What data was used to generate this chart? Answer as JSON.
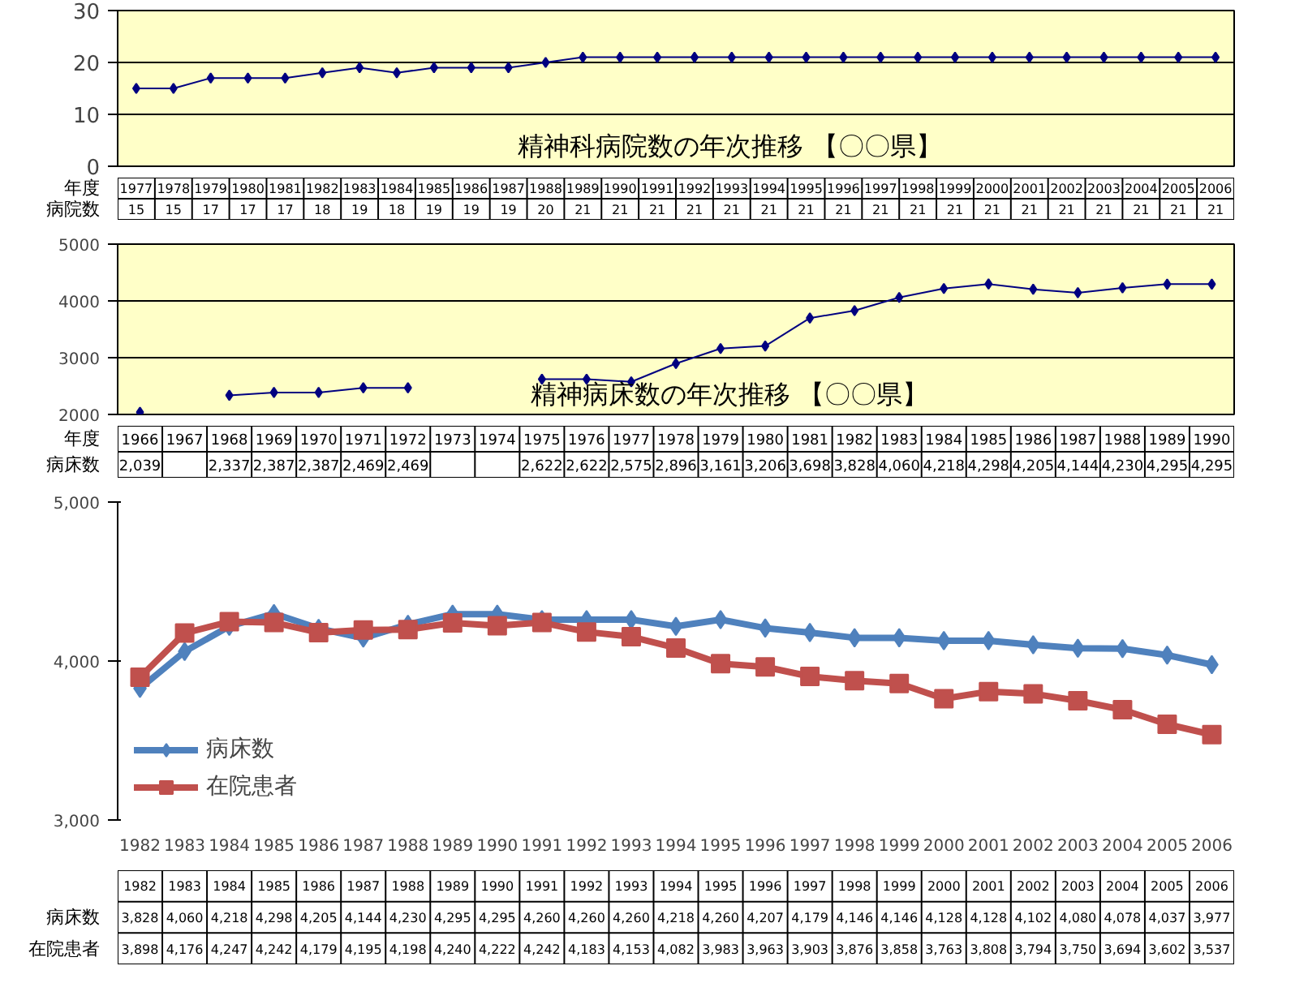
{
  "chart_data": [
    {
      "type": "line",
      "title": "精神科病院数の年次推移 【〇〇県】",
      "xlabel": "年度",
      "categories": [
        "1977",
        "1978",
        "1979",
        "1980",
        "1981",
        "1982",
        "1983",
        "1984",
        "1985",
        "1986",
        "1987",
        "1988",
        "1989",
        "1990",
        "1991",
        "1992",
        "1993",
        "1994",
        "1995",
        "1996",
        "1997",
        "1998",
        "1999",
        "2000",
        "2001",
        "2002",
        "2003",
        "2004",
        "2005",
        "2006"
      ],
      "series": [
        {
          "name": "病院数",
          "color": "#000080",
          "values": [
            15,
            15,
            17,
            17,
            17,
            18,
            19,
            18,
            19,
            19,
            19,
            20,
            21,
            21,
            21,
            21,
            21,
            21,
            21,
            21,
            21,
            21,
            21,
            21,
            21,
            21,
            21,
            21,
            21,
            21
          ]
        }
      ],
      "ylim": [
        0,
        30
      ],
      "yticks": [
        0,
        10,
        20,
        30
      ],
      "grid": "y",
      "tick_labels": "y",
      "marker": "diamond",
      "data_labels": true
    },
    {
      "type": "line",
      "title": "精神病床数の年次推移 【〇〇県】",
      "xlabel": "年度",
      "categories": [
        "1966",
        "1967",
        "1968",
        "1969",
        "1970",
        "1971",
        "1972",
        "1973",
        "1974",
        "1975",
        "1976",
        "1977",
        "1978",
        "1979",
        "1980",
        "1981",
        "1982",
        "1983",
        "1984",
        "1985",
        "1986",
        "1987",
        "1988",
        "1989",
        "1990"
      ],
      "series": [
        {
          "name": "病床数",
          "color": "#000080",
          "values": [
            2039,
            null,
            2337,
            2387,
            2387,
            2469,
            2469,
            null,
            null,
            2622,
            2622,
            2575,
            2896,
            3161,
            3206,
            3698,
            3828,
            4060,
            4218,
            4298,
            4205,
            4144,
            4230,
            4295,
            4295
          ],
          "value_labels": [
            "2,039",
            null,
            "2,337",
            "2,387",
            "2,387",
            "2,469",
            "2,469",
            null,
            null,
            "2,622",
            "2,622",
            "2,575",
            "2,896",
            "3,161",
            "3,206",
            "3,698",
            "3,828",
            "4,060",
            "4,218",
            "4,298",
            "4,205",
            "4,144",
            "4,230",
            "4,295",
            "4,295"
          ]
        }
      ],
      "ylim": [
        2000,
        5000
      ],
      "yticks": [
        2000,
        3000,
        4000,
        5000
      ],
      "grid": "y",
      "tick_labels": "y",
      "marker": "diamond"
    },
    {
      "type": "line",
      "categories": [
        "1982",
        "1983",
        "1984",
        "1985",
        "1986",
        "1987",
        "1988",
        "1989",
        "1990",
        "1991",
        "1992",
        "1993",
        "1994",
        "1995",
        "1996",
        "1997",
        "1998",
        "1999",
        "2000",
        "2001",
        "2002",
        "2003",
        "2004",
        "2005",
        "2006"
      ],
      "series": [
        {
          "name": "病床数",
          "color": "#4f81bd",
          "marker": "diamond",
          "values": [
            3828,
            4060,
            4218,
            4298,
            4205,
            4144,
            4230,
            4295,
            4295,
            4260,
            4260,
            4260,
            4218,
            4260,
            4207,
            4179,
            4146,
            4146,
            4128,
            4128,
            4102,
            4080,
            4078,
            4037,
            3977
          ],
          "value_labels": [
            "3,828",
            "4,060",
            "4,218",
            "4,298",
            "4,205",
            "4,144",
            "4,230",
            "4,295",
            "4,295",
            "4,260",
            "4,260",
            "4,260",
            "4,218",
            "4,260",
            "4,207",
            "4,179",
            "4,146",
            "4,146",
            "4,128",
            "4,128",
            "4,102",
            "4,080",
            "4,078",
            "4,037",
            "3,977"
          ]
        },
        {
          "name": "在院患者",
          "color": "#c0504d",
          "marker": "square",
          "values": [
            3898,
            4176,
            4247,
            4242,
            4179,
            4195,
            4198,
            4240,
            4222,
            4242,
            4183,
            4153,
            4082,
            3983,
            3963,
            3903,
            3876,
            3858,
            3763,
            3808,
            3794,
            3750,
            3694,
            3602,
            3537
          ],
          "value_labels": [
            "3,898",
            "4,176",
            "4,247",
            "4,242",
            "4,179",
            "4,195",
            "4,198",
            "4,240",
            "4,222",
            "4,242",
            "4,183",
            "4,153",
            "4,082",
            "3,983",
            "3,963",
            "3,903",
            "3,876",
            "3,858",
            "3,763",
            "3,808",
            "3,794",
            "3,750",
            "3,694",
            "3,602",
            "3,537"
          ]
        }
      ],
      "ylim": [
        3000,
        5000
      ],
      "yticks": [
        {
          "value": 3000,
          "label": "3,000"
        },
        {
          "value": 4000,
          "label": "4,000"
        },
        {
          "value": 5000,
          "label": "5,000"
        }
      ],
      "legend": "bottom left"
    }
  ]
}
